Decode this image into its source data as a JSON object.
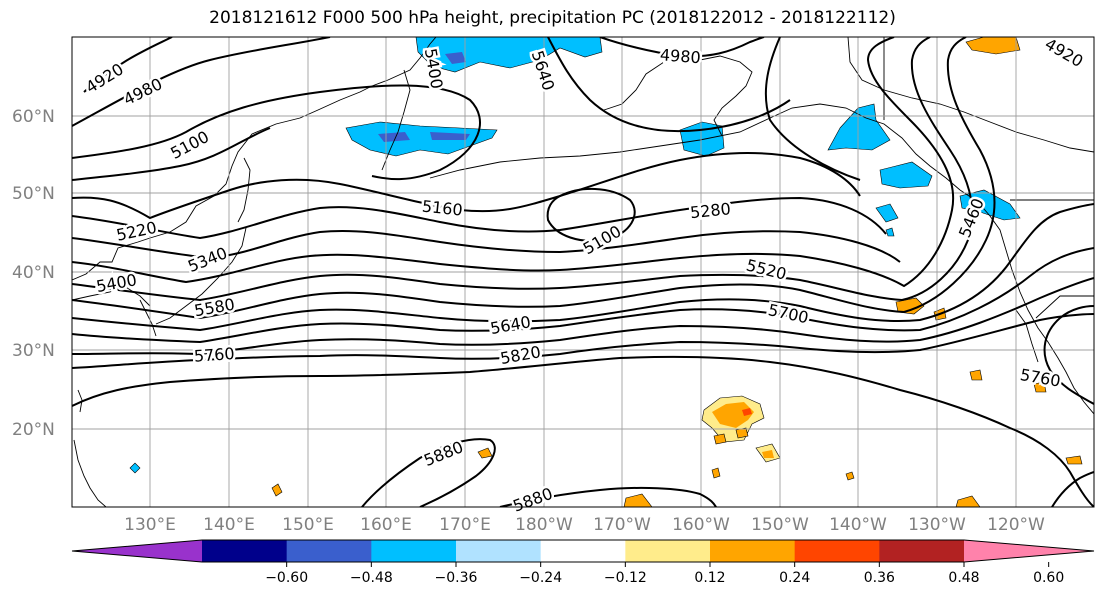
{
  "title": "2018121612 F000 500 hPa height, precipitation PC (2018122012 - 2018122112)",
  "lat_labels": [
    "60°N",
    "50°N",
    "40°N",
    "30°N",
    "20°N"
  ],
  "lon_labels": [
    "130°E",
    "140°E",
    "150°E",
    "160°E",
    "170°E",
    "180°W",
    "170°W",
    "160°W",
    "150°W",
    "140°W",
    "130°W",
    "120°W"
  ],
  "contour_labels": [
    "4920",
    "4980",
    "5100",
    "5220",
    "5340",
    "5400",
    "5580",
    "5760",
    "5160",
    "5100",
    "5280",
    "5520",
    "5640",
    "5700",
    "5820",
    "5880",
    "5880",
    "4980",
    "5640",
    "5460",
    "5760",
    "5400",
    "4920"
  ],
  "colorbar": {
    "ticks": [
      "−0.60",
      "−0.48",
      "−0.36",
      "−0.24",
      "−0.12",
      "0.12",
      "0.24",
      "0.36",
      "0.48",
      "0.60"
    ],
    "colors": [
      "#9932cc",
      "#00008b",
      "#3a5fcd",
      "#00bfff",
      "#b0e2ff",
      "#ffffff",
      "#ffec8b",
      "#ffa500",
      "#ff4500",
      "#b22222",
      "#ff82ab"
    ]
  },
  "colors": {
    "contour": "#000000",
    "grid": "#a0a0a0",
    "coast": "#000000",
    "axis_label": "#808080"
  }
}
